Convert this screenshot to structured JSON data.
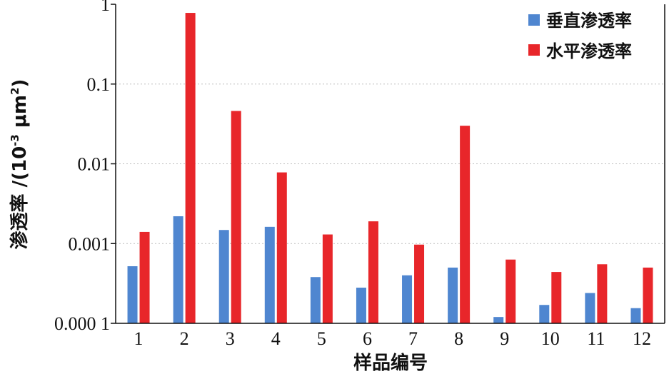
{
  "chart_data": {
    "type": "bar",
    "xlabel": "样品编号",
    "ylabel": {
      "prefix": "渗透率 /(10",
      "exp1": "-3",
      "middle": " μm",
      "exp2": "2",
      "suffix": ")"
    },
    "y_scale": "log",
    "ylim": [
      0.0001,
      1
    ],
    "y_ticks": [
      {
        "value": 0.0001,
        "label": "0.000 1"
      },
      {
        "value": 0.001,
        "label": "0.001"
      },
      {
        "value": 0.01,
        "label": "0.01"
      },
      {
        "value": 0.1,
        "label": "0.1"
      },
      {
        "value": 1,
        "label": "1"
      }
    ],
    "grid": "horizontal dotted",
    "legend_position": "top-right",
    "categories": [
      "1",
      "2",
      "3",
      "4",
      "5",
      "6",
      "7",
      "8",
      "9",
      "10",
      "11",
      "12"
    ],
    "series": [
      {
        "name": "垂直渗透率",
        "color": "#4f86d0",
        "values": [
          0.00052,
          0.0022,
          0.00148,
          0.00162,
          0.00038,
          0.00028,
          0.0004,
          0.0005,
          0.00012,
          0.00017,
          0.00024,
          0.000155
        ]
      },
      {
        "name": "水平渗透率",
        "color": "#e8262a",
        "values": [
          0.0014,
          0.78,
          0.046,
          0.0078,
          0.0013,
          0.0019,
          0.00097,
          0.03,
          0.00063,
          0.00044,
          0.00055,
          0.0005
        ]
      }
    ]
  }
}
